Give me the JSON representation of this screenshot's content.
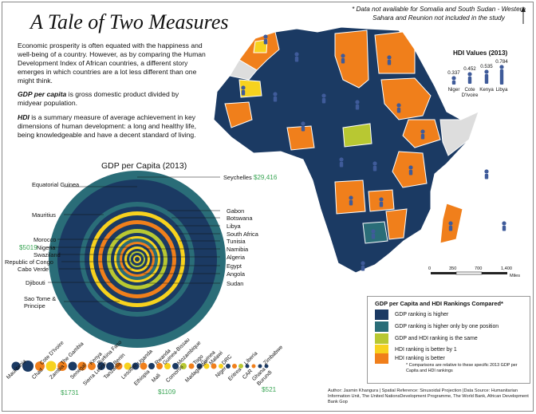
{
  "title": "A Tale of Two Measures",
  "note": "* Data not available for Somalia and South Sudan - Western Sahara and Reunion not included in the study",
  "intro": "Economic prosperity is often equated with the happiness and well-being of a country. However, as by comparing the Human Development Index of African countries, a different story emerges in which countries are a lot less different than one might think.",
  "gdp_def": {
    "term": "GDP per capita",
    "text": " is gross domestic product divided by midyear population."
  },
  "hdi_def": {
    "term": "HDI",
    "text": " is a summary measure of average achievement in key dimensions of human development: a long and healthy life, being knowledgeable and have a decent standard of living."
  },
  "gdp_chart": {
    "title": "GDP per Capita (2013)",
    "left_labels": [
      "Equatorial Guinea",
      "Mauritius",
      "Morocco",
      "Nigeria",
      "Swaziland",
      "Republic of Congo",
      "Cabo Verde",
      "Djibouti",
      "Sao Tome & Principe"
    ],
    "right_labels": [
      "Seychelles",
      "Gabon",
      "Botswana",
      "Libya",
      "South Africa",
      "Tunisia",
      "Namibia",
      "Algeria",
      "Egypt",
      "Angola",
      "Sudan"
    ],
    "value_seychelles": "$29,416",
    "value_morocco": "$5019"
  },
  "hdi_values": {
    "title": "HDI Values (2013)",
    "items": [
      {
        "country": "Niger",
        "value": "0.337"
      },
      {
        "country": "Cote D'Ivoire",
        "value": "0.452"
      },
      {
        "country": "Kenya",
        "value": "0.535"
      },
      {
        "country": "Libya",
        "value": "0.784"
      }
    ]
  },
  "scale": {
    "ticks": [
      "0",
      "350",
      "700",
      "1,400"
    ],
    "unit": "Miles"
  },
  "legend": {
    "title": "GDP per Capita and HDI Rankings Compared*",
    "items": [
      {
        "label": "GDP ranking is higher",
        "color": "#1b3a63"
      },
      {
        "label": "GDP ranking is higher only by one position",
        "color": "#2a6d78"
      },
      {
        "label": "GDP and HDI ranking is the same",
        "color": "#b8c832"
      },
      {
        "label": "HDI ranking is better by 1",
        "color": "#f7d21e"
      },
      {
        "label": "HDI ranking is better",
        "color": "#f07f1b"
      }
    ],
    "note": "* Comparisons are relative to these specific 2013 GDP per Capita and HDI rankings"
  },
  "bottom_countries": [
    "Mauritania",
    "Chad",
    "Cote D'Ivoire",
    "Zambia",
    "The Gambia",
    "Senegal",
    "Sierra Leone",
    "Kenya",
    "Burkina Faso",
    "Tanzania",
    "Benin",
    "Lesotho",
    "Ethiopia",
    "Uganda",
    "Mali",
    "Rwanda",
    "Guinea-Bissau",
    "Comoros",
    "Mozambique",
    "Madagascar",
    "Togo",
    "Guinea",
    "Malawi",
    "Niger",
    "DRC",
    "Eritrea",
    "CAR",
    "Liberia",
    "Ghana",
    "Burundi",
    "Zimbabwe"
  ],
  "bottom_values": {
    "zambia": "$1731",
    "mali": "$1109",
    "burundi": "$521"
  },
  "credits": "Author: Jasmin Khangura | Spatial Reference: Sinusoidal Projection |Data Source: Humanitarian Information Unit, The United NationsDevelopment Programme, The World Bank,  African Development Bank Gop",
  "colors": {
    "navy": "#1b3a63",
    "teal": "#2a6d78",
    "lime": "#b8c832",
    "yellow": "#f7d21e",
    "orange": "#f07f1b",
    "person": "#3f5b9a"
  }
}
